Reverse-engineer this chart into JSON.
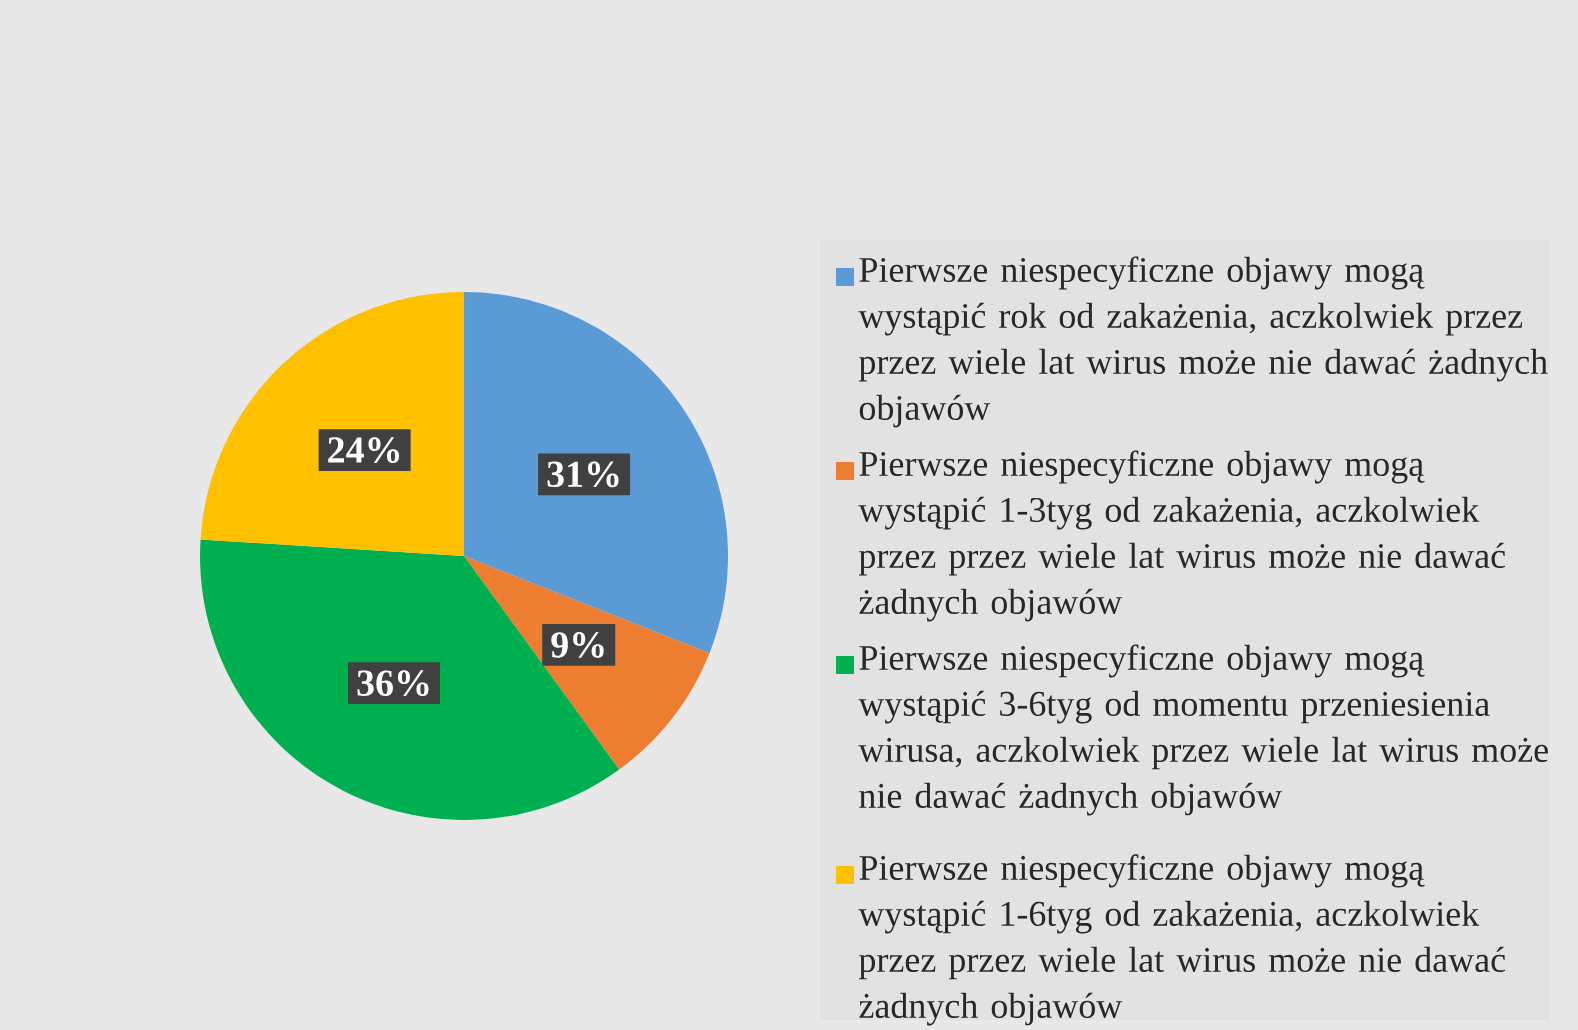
{
  "chart_data": {
    "type": "pie",
    "categories": [
      "Pierwsze niespecyficzne objawy mogą wystąpić rok od zakażenia, aczkolwiek przez przez wiele lat wirus może nie dawać żadnych objawów",
      "Pierwsze niespecyficzne objawy mogą wystąpić 1-3tyg od zakażenia, aczkolwiek przez przez wiele lat wirus może nie dawać żadnych objawów",
      "Pierwsze niespecyficzne objawy mogą wystąpić 3-6tyg od momentu przeniesienia wirusa, aczkolwiek przez wiele lat wirus może nie dawać żadnych objawów",
      "Pierwsze niespecyficzne objawy mogą wystąpić 1-6tyg od zakażenia, aczkolwiek przez przez wiele lat wirus może nie dawać żadnych objawów"
    ],
    "values": [
      31,
      9,
      36,
      24
    ],
    "value_labels": [
      "31%",
      "9%",
      "36%",
      "24%"
    ],
    "colors": [
      "#5b9bd5",
      "#ed7d31",
      "#00b050",
      "#ffc000"
    ],
    "legend": "right"
  }
}
